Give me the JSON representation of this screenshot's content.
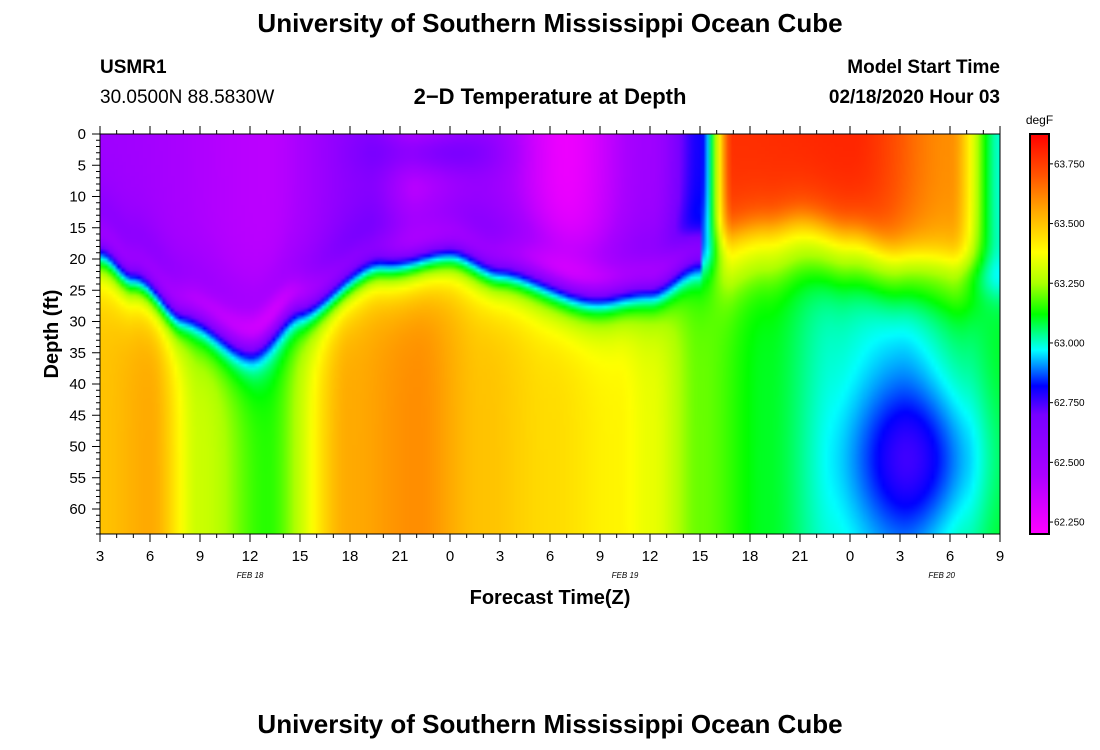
{
  "page": {
    "title_top": "University of Southern Mississippi Ocean Cube",
    "title_bottom": "University of Southern Mississippi Ocean Cube",
    "station_id": "USMR1",
    "station_coords": "30.0500N 88.5830W",
    "subtitle": "2−D Temperature at Depth",
    "model_start_label": "Model Start Time",
    "model_start_value": "02/18/2020 Hour 03"
  },
  "chart_data": {
    "type": "heatmap",
    "title": "2−D Temperature at Depth",
    "xlabel": "Forecast Time(Z)",
    "ylabel": "Depth (ft)",
    "x_tick_labels": [
      "3",
      "6",
      "9",
      "12",
      "15",
      "18",
      "21",
      "0",
      "3",
      "6",
      "9",
      "12",
      "15",
      "18",
      "21",
      "0",
      "3",
      "6",
      "9"
    ],
    "x_range_hours": [
      0,
      54
    ],
    "date_labels": [
      {
        "label": "FEB 18",
        "hour": 9
      },
      {
        "label": "FEB 19",
        "hour": 31.5
      },
      {
        "label": "FEB 20",
        "hour": 50.5
      }
    ],
    "y_ticks": [
      0,
      5,
      10,
      15,
      20,
      25,
      30,
      35,
      40,
      45,
      50,
      55,
      60
    ],
    "ylim": [
      0,
      64
    ],
    "colorbar": {
      "unit": "degF",
      "range": [
        62.2,
        63.875
      ],
      "ticks": [
        "63.750",
        "63.500",
        "63.250",
        "63.000",
        "62.750",
        "62.500",
        "62.250"
      ],
      "tick_values": [
        63.75,
        63.5,
        63.25,
        63.0,
        62.75,
        62.5,
        62.25
      ],
      "palette": [
        {
          "v": 62.2,
          "color": "#ff00ff"
        },
        {
          "v": 62.45,
          "color": "#aa00ff"
        },
        {
          "v": 62.7,
          "color": "#7700ff"
        },
        {
          "v": 62.82,
          "color": "#0000ff"
        },
        {
          "v": 62.97,
          "color": "#00ffff"
        },
        {
          "v": 63.12,
          "color": "#00ff00"
        },
        {
          "v": 63.25,
          "color": "#aaff00"
        },
        {
          "v": 63.38,
          "color": "#ffff00"
        },
        {
          "v": 63.55,
          "color": "#ffaa00"
        },
        {
          "v": 63.7,
          "color": "#ff5500"
        },
        {
          "v": 63.875,
          "color": "#ff0000"
        }
      ]
    },
    "mixed_layer_depth_ft": {
      "hours": [
        0,
        2,
        5,
        9,
        12,
        17,
        21,
        24,
        30,
        33,
        36,
        40,
        42,
        45,
        48,
        54
      ],
      "depths": [
        18,
        22,
        28,
        33,
        27,
        20,
        18,
        21,
        25,
        24,
        20,
        18,
        17,
        19,
        22,
        24
      ]
    },
    "upper_layer_temp_degF": {
      "hours": [
        0,
        10,
        16,
        19,
        23,
        28,
        33,
        36,
        38,
        45,
        51,
        54
      ],
      "temps": [
        62.5,
        62.4,
        62.6,
        62.35,
        62.5,
        62.25,
        62.5,
        62.8,
        63.78,
        63.8,
        63.6,
        63.0
      ]
    },
    "lower_layer_temp_degF": {
      "hours": [
        0,
        3,
        6,
        10,
        15,
        19,
        23,
        27,
        31,
        33,
        36,
        40,
        44,
        48,
        52,
        54
      ],
      "temps": [
        63.5,
        63.55,
        63.3,
        63.15,
        63.55,
        63.6,
        63.5,
        63.45,
        63.4,
        63.35,
        63.2,
        63.1,
        63.0,
        62.95,
        63.05,
        63.1
      ]
    }
  }
}
